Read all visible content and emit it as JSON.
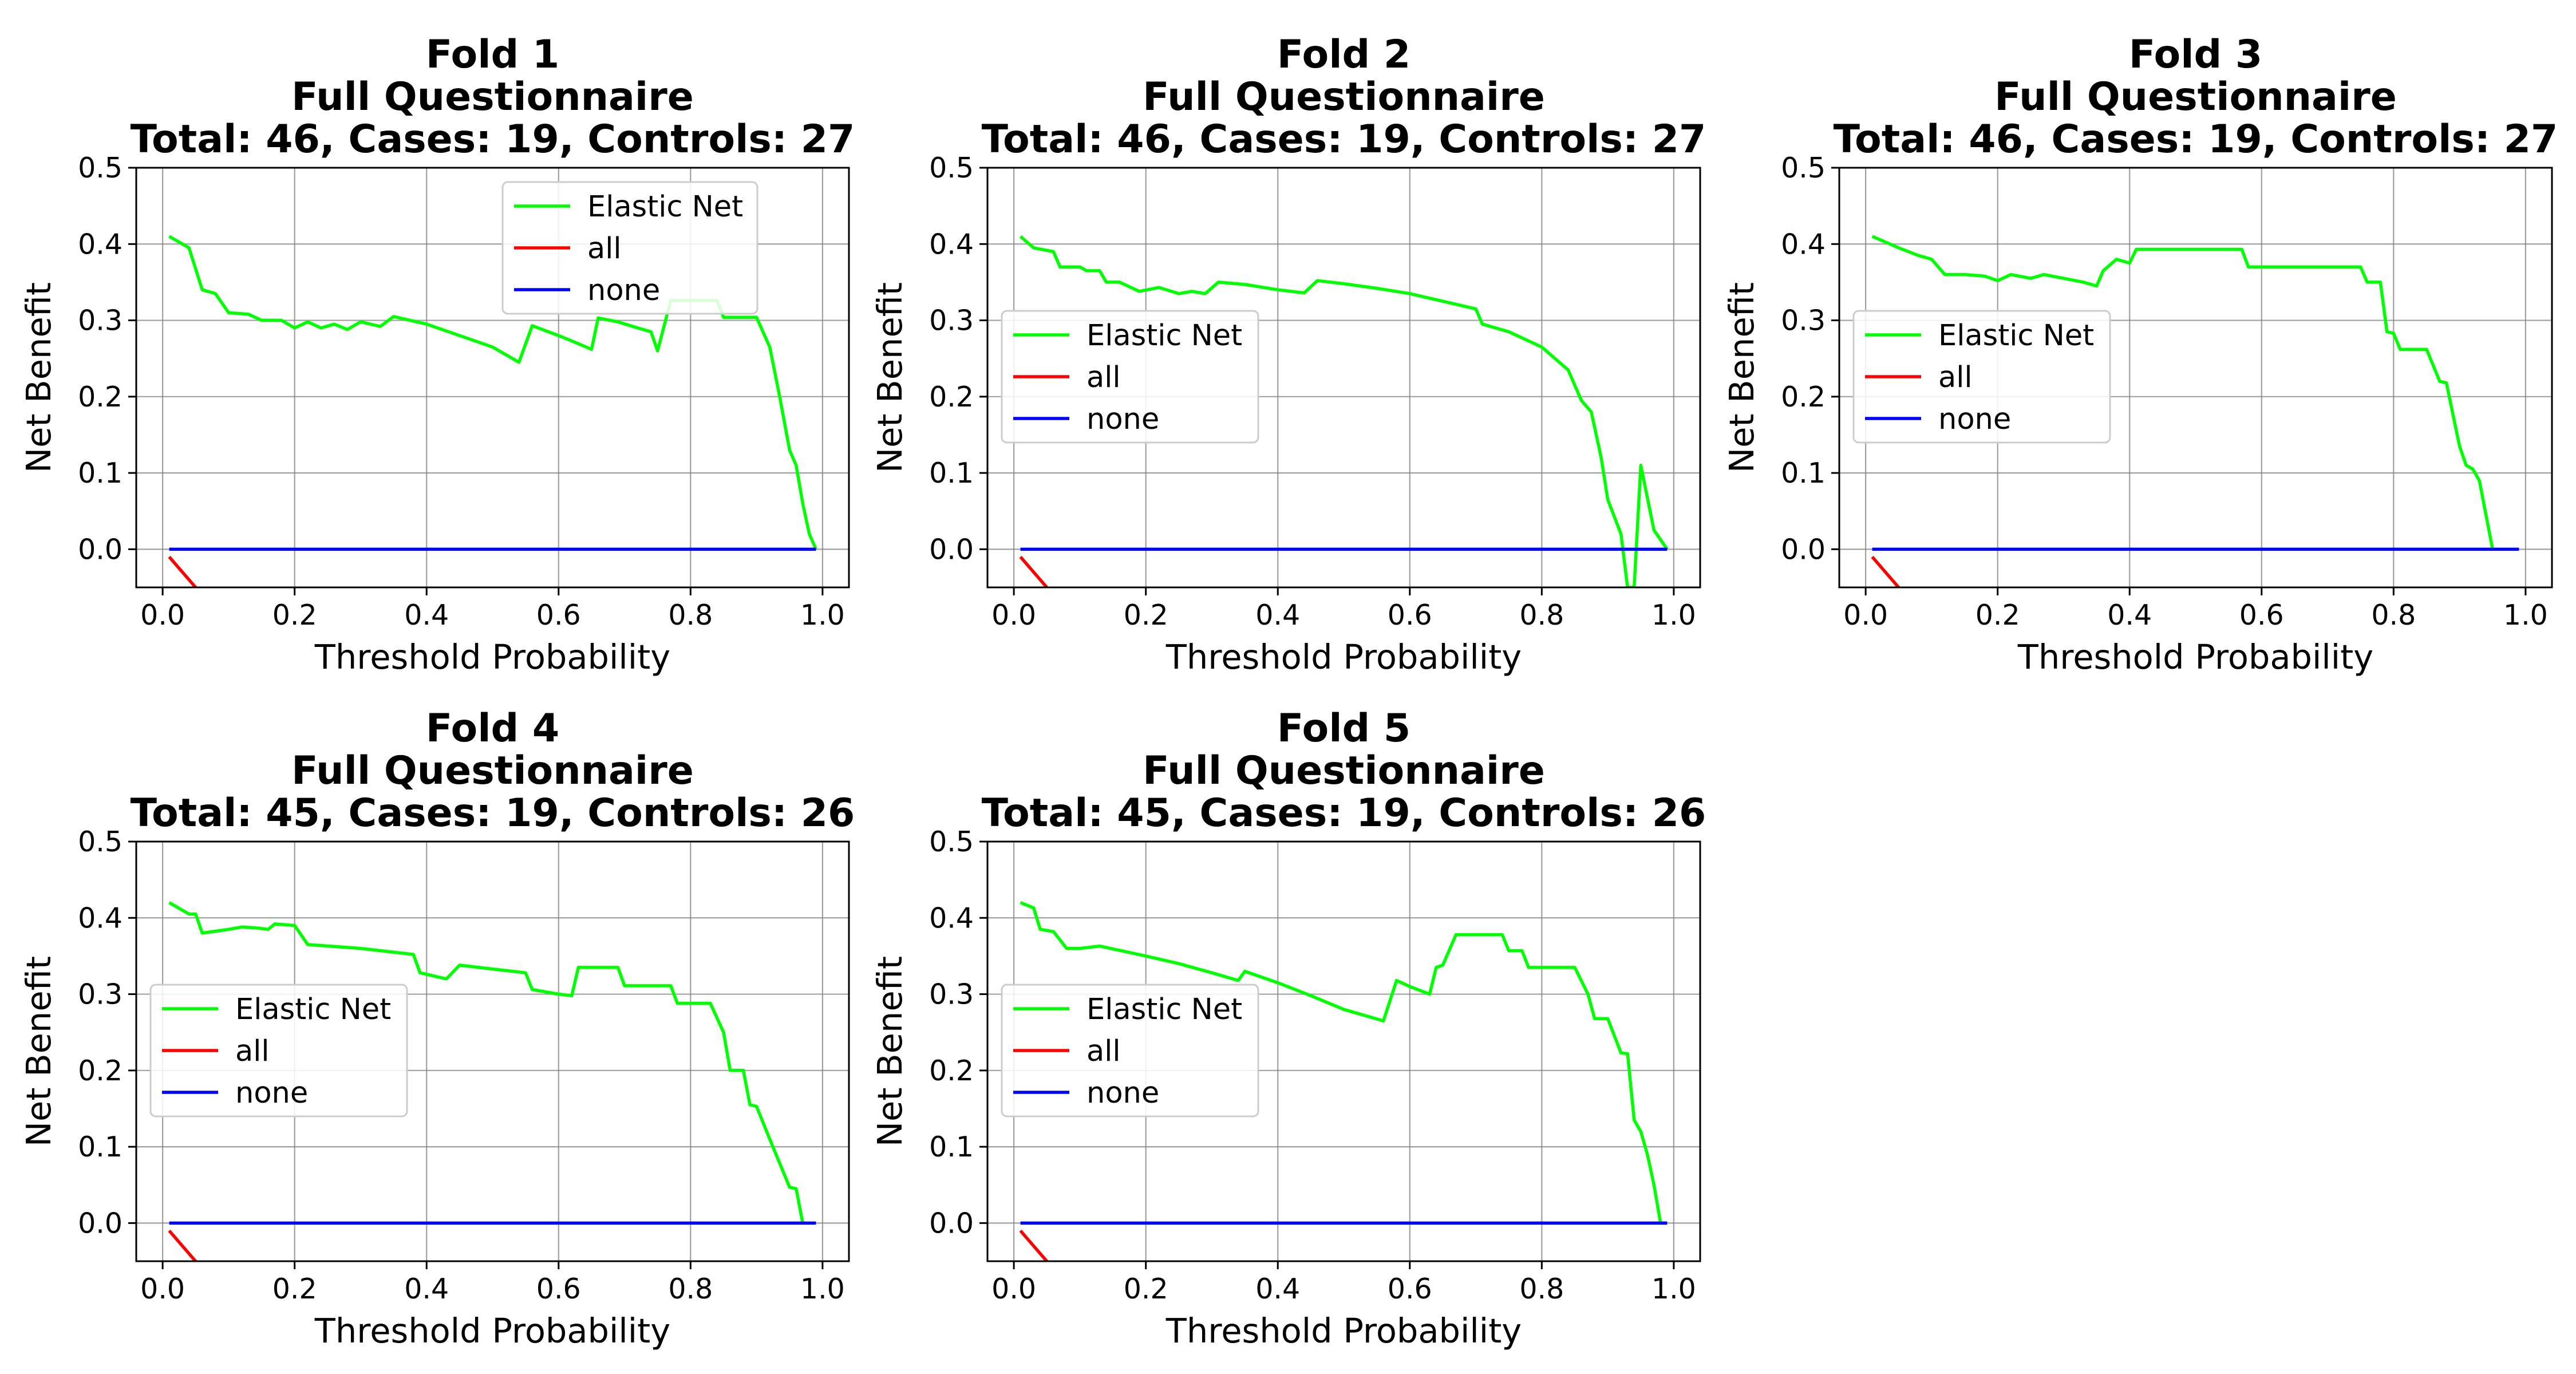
{
  "figure": {
    "layout": {
      "rows": 2,
      "cols": 3
    },
    "colors": {
      "elastic_net": "#00ff00",
      "all": "#ff0000",
      "none": "#0000ff",
      "grid": "#808080",
      "frame": "#000000",
      "legend_border": "#cccccc"
    }
  },
  "chart_data": [
    {
      "type": "line",
      "title": [
        "Fold 1",
        "Full Questionnaire",
        "Total: 46, Cases: 19, Controls: 27"
      ],
      "xlabel": "Threshold Probability",
      "ylabel": "Net Benefit",
      "xlim": [
        -0.04,
        1.04
      ],
      "ylim": [
        -0.05,
        0.5
      ],
      "xticks": [
        "0.0",
        "0.2",
        "0.4",
        "0.6",
        "0.8",
        "1.0"
      ],
      "yticks": [
        "0.0",
        "0.1",
        "0.2",
        "0.3",
        "0.4",
        "0.5"
      ],
      "grid": true,
      "legend_position": "upper-center",
      "series": [
        {
          "name": "Elastic Net",
          "color": "#00ff00",
          "points": [
            [
              0.01,
              0.41
            ],
            [
              0.04,
              0.395
            ],
            [
              0.06,
              0.34
            ],
            [
              0.08,
              0.335
            ],
            [
              0.1,
              0.31
            ],
            [
              0.13,
              0.308
            ],
            [
              0.15,
              0.3
            ],
            [
              0.18,
              0.3
            ],
            [
              0.2,
              0.29
            ],
            [
              0.22,
              0.298
            ],
            [
              0.24,
              0.29
            ],
            [
              0.26,
              0.295
            ],
            [
              0.28,
              0.288
            ],
            [
              0.3,
              0.298
            ],
            [
              0.33,
              0.292
            ],
            [
              0.35,
              0.305
            ],
            [
              0.4,
              0.295
            ],
            [
              0.45,
              0.28
            ],
            [
              0.5,
              0.265
            ],
            [
              0.54,
              0.245
            ],
            [
              0.56,
              0.293
            ],
            [
              0.6,
              0.28
            ],
            [
              0.62,
              0.273
            ],
            [
              0.65,
              0.262
            ],
            [
              0.66,
              0.303
            ],
            [
              0.69,
              0.298
            ],
            [
              0.72,
              0.29
            ],
            [
              0.74,
              0.285
            ],
            [
              0.75,
              0.26
            ],
            [
              0.77,
              0.326
            ],
            [
              0.84,
              0.326
            ],
            [
              0.85,
              0.304
            ],
            [
              0.9,
              0.304
            ],
            [
              0.92,
              0.265
            ],
            [
              0.935,
              0.2
            ],
            [
              0.95,
              0.13
            ],
            [
              0.96,
              0.11
            ],
            [
              0.97,
              0.06
            ],
            [
              0.98,
              0.02
            ],
            [
              0.99,
              0.0
            ]
          ]
        },
        {
          "name": "all",
          "color": "#ff0000",
          "points": [
            [
              0.01,
              -0.01
            ],
            [
              0.055,
              -0.055
            ]
          ]
        },
        {
          "name": "none",
          "color": "#0000ff",
          "points": [
            [
              0.01,
              0.0
            ],
            [
              0.99,
              0.0
            ]
          ]
        }
      ]
    },
    {
      "type": "line",
      "title": [
        "Fold 2",
        "Full Questionnaire",
        "Total: 46, Cases: 19, Controls: 27"
      ],
      "xlabel": "Threshold Probability",
      "ylabel": "Net Benefit",
      "xlim": [
        -0.04,
        1.04
      ],
      "ylim": [
        -0.05,
        0.5
      ],
      "xticks": [
        "0.0",
        "0.2",
        "0.4",
        "0.6",
        "0.8",
        "1.0"
      ],
      "yticks": [
        "0.0",
        "0.1",
        "0.2",
        "0.3",
        "0.4",
        "0.5"
      ],
      "grid": true,
      "legend_position": "center-left",
      "series": [
        {
          "name": "Elastic Net",
          "color": "#00ff00",
          "points": [
            [
              0.01,
              0.41
            ],
            [
              0.03,
              0.395
            ],
            [
              0.06,
              0.39
            ],
            [
              0.07,
              0.37
            ],
            [
              0.1,
              0.37
            ],
            [
              0.11,
              0.365
            ],
            [
              0.13,
              0.365
            ],
            [
              0.14,
              0.35
            ],
            [
              0.16,
              0.35
            ],
            [
              0.19,
              0.338
            ],
            [
              0.22,
              0.343
            ],
            [
              0.25,
              0.335
            ],
            [
              0.27,
              0.338
            ],
            [
              0.29,
              0.335
            ],
            [
              0.31,
              0.35
            ],
            [
              0.35,
              0.347
            ],
            [
              0.4,
              0.34
            ],
            [
              0.44,
              0.336
            ],
            [
              0.46,
              0.352
            ],
            [
              0.5,
              0.348
            ],
            [
              0.55,
              0.342
            ],
            [
              0.6,
              0.335
            ],
            [
              0.65,
              0.325
            ],
            [
              0.7,
              0.315
            ],
            [
              0.71,
              0.295
            ],
            [
              0.75,
              0.285
            ],
            [
              0.8,
              0.265
            ],
            [
              0.84,
              0.235
            ],
            [
              0.86,
              0.195
            ],
            [
              0.875,
              0.18
            ],
            [
              0.89,
              0.12
            ],
            [
              0.9,
              0.065
            ],
            [
              0.92,
              0.02
            ],
            [
              0.93,
              -0.05
            ],
            [
              0.94,
              -0.05
            ],
            [
              0.95,
              0.11
            ],
            [
              0.97,
              0.025
            ],
            [
              0.99,
              0.0
            ]
          ]
        },
        {
          "name": "all",
          "color": "#ff0000",
          "points": [
            [
              0.01,
              -0.01
            ],
            [
              0.055,
              -0.055
            ]
          ]
        },
        {
          "name": "none",
          "color": "#0000ff",
          "points": [
            [
              0.01,
              0.0
            ],
            [
              0.99,
              0.0
            ]
          ]
        }
      ]
    },
    {
      "type": "line",
      "title": [
        "Fold 3",
        "Full Questionnaire",
        "Total: 46, Cases: 19, Controls: 27"
      ],
      "xlabel": "Threshold Probability",
      "ylabel": "Net Benefit",
      "xlim": [
        -0.04,
        1.04
      ],
      "ylim": [
        -0.05,
        0.5
      ],
      "xticks": [
        "0.0",
        "0.2",
        "0.4",
        "0.6",
        "0.8",
        "1.0"
      ],
      "yticks": [
        "0.0",
        "0.1",
        "0.2",
        "0.3",
        "0.4",
        "0.5"
      ],
      "grid": true,
      "legend_position": "center-left",
      "series": [
        {
          "name": "Elastic Net",
          "color": "#00ff00",
          "points": [
            [
              0.01,
              0.41
            ],
            [
              0.05,
              0.395
            ],
            [
              0.08,
              0.385
            ],
            [
              0.1,
              0.38
            ],
            [
              0.12,
              0.36
            ],
            [
              0.15,
              0.36
            ],
            [
              0.18,
              0.358
            ],
            [
              0.2,
              0.352
            ],
            [
              0.22,
              0.36
            ],
            [
              0.25,
              0.355
            ],
            [
              0.27,
              0.36
            ],
            [
              0.3,
              0.355
            ],
            [
              0.33,
              0.35
            ],
            [
              0.35,
              0.345
            ],
            [
              0.36,
              0.365
            ],
            [
              0.38,
              0.38
            ],
            [
              0.4,
              0.375
            ],
            [
              0.41,
              0.393
            ],
            [
              0.57,
              0.393
            ],
            [
              0.58,
              0.37
            ],
            [
              0.75,
              0.37
            ],
            [
              0.76,
              0.35
            ],
            [
              0.78,
              0.35
            ],
            [
              0.79,
              0.285
            ],
            [
              0.8,
              0.283
            ],
            [
              0.81,
              0.262
            ],
            [
              0.85,
              0.262
            ],
            [
              0.87,
              0.22
            ],
            [
              0.88,
              0.218
            ],
            [
              0.9,
              0.135
            ],
            [
              0.91,
              0.11
            ],
            [
              0.92,
              0.105
            ],
            [
              0.93,
              0.09
            ],
            [
              0.95,
              0.0
            ]
          ]
        },
        {
          "name": "all",
          "color": "#ff0000",
          "points": [
            [
              0.01,
              -0.01
            ],
            [
              0.055,
              -0.055
            ]
          ]
        },
        {
          "name": "none",
          "color": "#0000ff",
          "points": [
            [
              0.01,
              0.0
            ],
            [
              0.99,
              0.0
            ]
          ]
        }
      ]
    },
    {
      "type": "line",
      "title": [
        "Fold 4",
        "Full Questionnaire",
        "Total: 45, Cases: 19, Controls: 26"
      ],
      "xlabel": "Threshold Probability",
      "ylabel": "Net Benefit",
      "xlim": [
        -0.04,
        1.04
      ],
      "ylim": [
        -0.05,
        0.5
      ],
      "xticks": [
        "0.0",
        "0.2",
        "0.4",
        "0.6",
        "0.8",
        "1.0"
      ],
      "yticks": [
        "0.0",
        "0.1",
        "0.2",
        "0.3",
        "0.4",
        "0.5"
      ],
      "grid": true,
      "legend_position": "center-left",
      "series": [
        {
          "name": "Elastic Net",
          "color": "#00ff00",
          "points": [
            [
              0.01,
              0.42
            ],
            [
              0.04,
              0.405
            ],
            [
              0.05,
              0.405
            ],
            [
              0.06,
              0.38
            ],
            [
              0.1,
              0.385
            ],
            [
              0.12,
              0.388
            ],
            [
              0.14,
              0.387
            ],
            [
              0.16,
              0.385
            ],
            [
              0.17,
              0.392
            ],
            [
              0.2,
              0.39
            ],
            [
              0.22,
              0.365
            ],
            [
              0.3,
              0.36
            ],
            [
              0.38,
              0.352
            ],
            [
              0.39,
              0.328
            ],
            [
              0.43,
              0.32
            ],
            [
              0.45,
              0.338
            ],
            [
              0.5,
              0.333
            ],
            [
              0.55,
              0.328
            ],
            [
              0.56,
              0.306
            ],
            [
              0.6,
              0.3
            ],
            [
              0.62,
              0.298
            ],
            [
              0.63,
              0.335
            ],
            [
              0.69,
              0.335
            ],
            [
              0.7,
              0.311
            ],
            [
              0.77,
              0.311
            ],
            [
              0.78,
              0.288
            ],
            [
              0.83,
              0.288
            ],
            [
              0.85,
              0.25
            ],
            [
              0.86,
              0.2
            ],
            [
              0.88,
              0.2
            ],
            [
              0.89,
              0.155
            ],
            [
              0.9,
              0.153
            ],
            [
              0.92,
              0.11
            ],
            [
              0.95,
              0.047
            ],
            [
              0.96,
              0.045
            ],
            [
              0.97,
              0.0
            ]
          ]
        },
        {
          "name": "all",
          "color": "#ff0000",
          "points": [
            [
              0.01,
              -0.01
            ],
            [
              0.055,
              -0.055
            ]
          ]
        },
        {
          "name": "none",
          "color": "#0000ff",
          "points": [
            [
              0.01,
              0.0
            ],
            [
              0.99,
              0.0
            ]
          ]
        }
      ]
    },
    {
      "type": "line",
      "title": [
        "Fold 5",
        "Full Questionnaire",
        "Total: 45, Cases: 19, Controls: 26"
      ],
      "xlabel": "Threshold Probability",
      "ylabel": "Net Benefit",
      "xlim": [
        -0.04,
        1.04
      ],
      "ylim": [
        -0.05,
        0.5
      ],
      "xticks": [
        "0.0",
        "0.2",
        "0.4",
        "0.6",
        "0.8",
        "1.0"
      ],
      "yticks": [
        "0.0",
        "0.1",
        "0.2",
        "0.3",
        "0.4",
        "0.5"
      ],
      "grid": true,
      "legend_position": "center-left",
      "series": [
        {
          "name": "Elastic Net",
          "color": "#00ff00",
          "points": [
            [
              0.01,
              0.42
            ],
            [
              0.03,
              0.413
            ],
            [
              0.04,
              0.385
            ],
            [
              0.06,
              0.382
            ],
            [
              0.08,
              0.36
            ],
            [
              0.1,
              0.36
            ],
            [
              0.13,
              0.363
            ],
            [
              0.2,
              0.35
            ],
            [
              0.25,
              0.34
            ],
            [
              0.3,
              0.328
            ],
            [
              0.34,
              0.318
            ],
            [
              0.35,
              0.33
            ],
            [
              0.4,
              0.315
            ],
            [
              0.45,
              0.298
            ],
            [
              0.5,
              0.28
            ],
            [
              0.56,
              0.265
            ],
            [
              0.58,
              0.318
            ],
            [
              0.6,
              0.31
            ],
            [
              0.63,
              0.3
            ],
            [
              0.64,
              0.335
            ],
            [
              0.65,
              0.338
            ],
            [
              0.67,
              0.378
            ],
            [
              0.74,
              0.378
            ],
            [
              0.75,
              0.357
            ],
            [
              0.77,
              0.357
            ],
            [
              0.78,
              0.335
            ],
            [
              0.85,
              0.335
            ],
            [
              0.87,
              0.3
            ],
            [
              0.88,
              0.268
            ],
            [
              0.9,
              0.268
            ],
            [
              0.92,
              0.223
            ],
            [
              0.93,
              0.222
            ],
            [
              0.94,
              0.135
            ],
            [
              0.95,
              0.12
            ],
            [
              0.96,
              0.09
            ],
            [
              0.97,
              0.05
            ],
            [
              0.98,
              0.0
            ],
            [
              0.99,
              0.0
            ]
          ]
        },
        {
          "name": "all",
          "color": "#ff0000",
          "points": [
            [
              0.01,
              -0.01
            ],
            [
              0.055,
              -0.055
            ]
          ]
        },
        {
          "name": "none",
          "color": "#0000ff",
          "points": [
            [
              0.01,
              0.0
            ],
            [
              0.99,
              0.0
            ]
          ]
        }
      ]
    }
  ]
}
